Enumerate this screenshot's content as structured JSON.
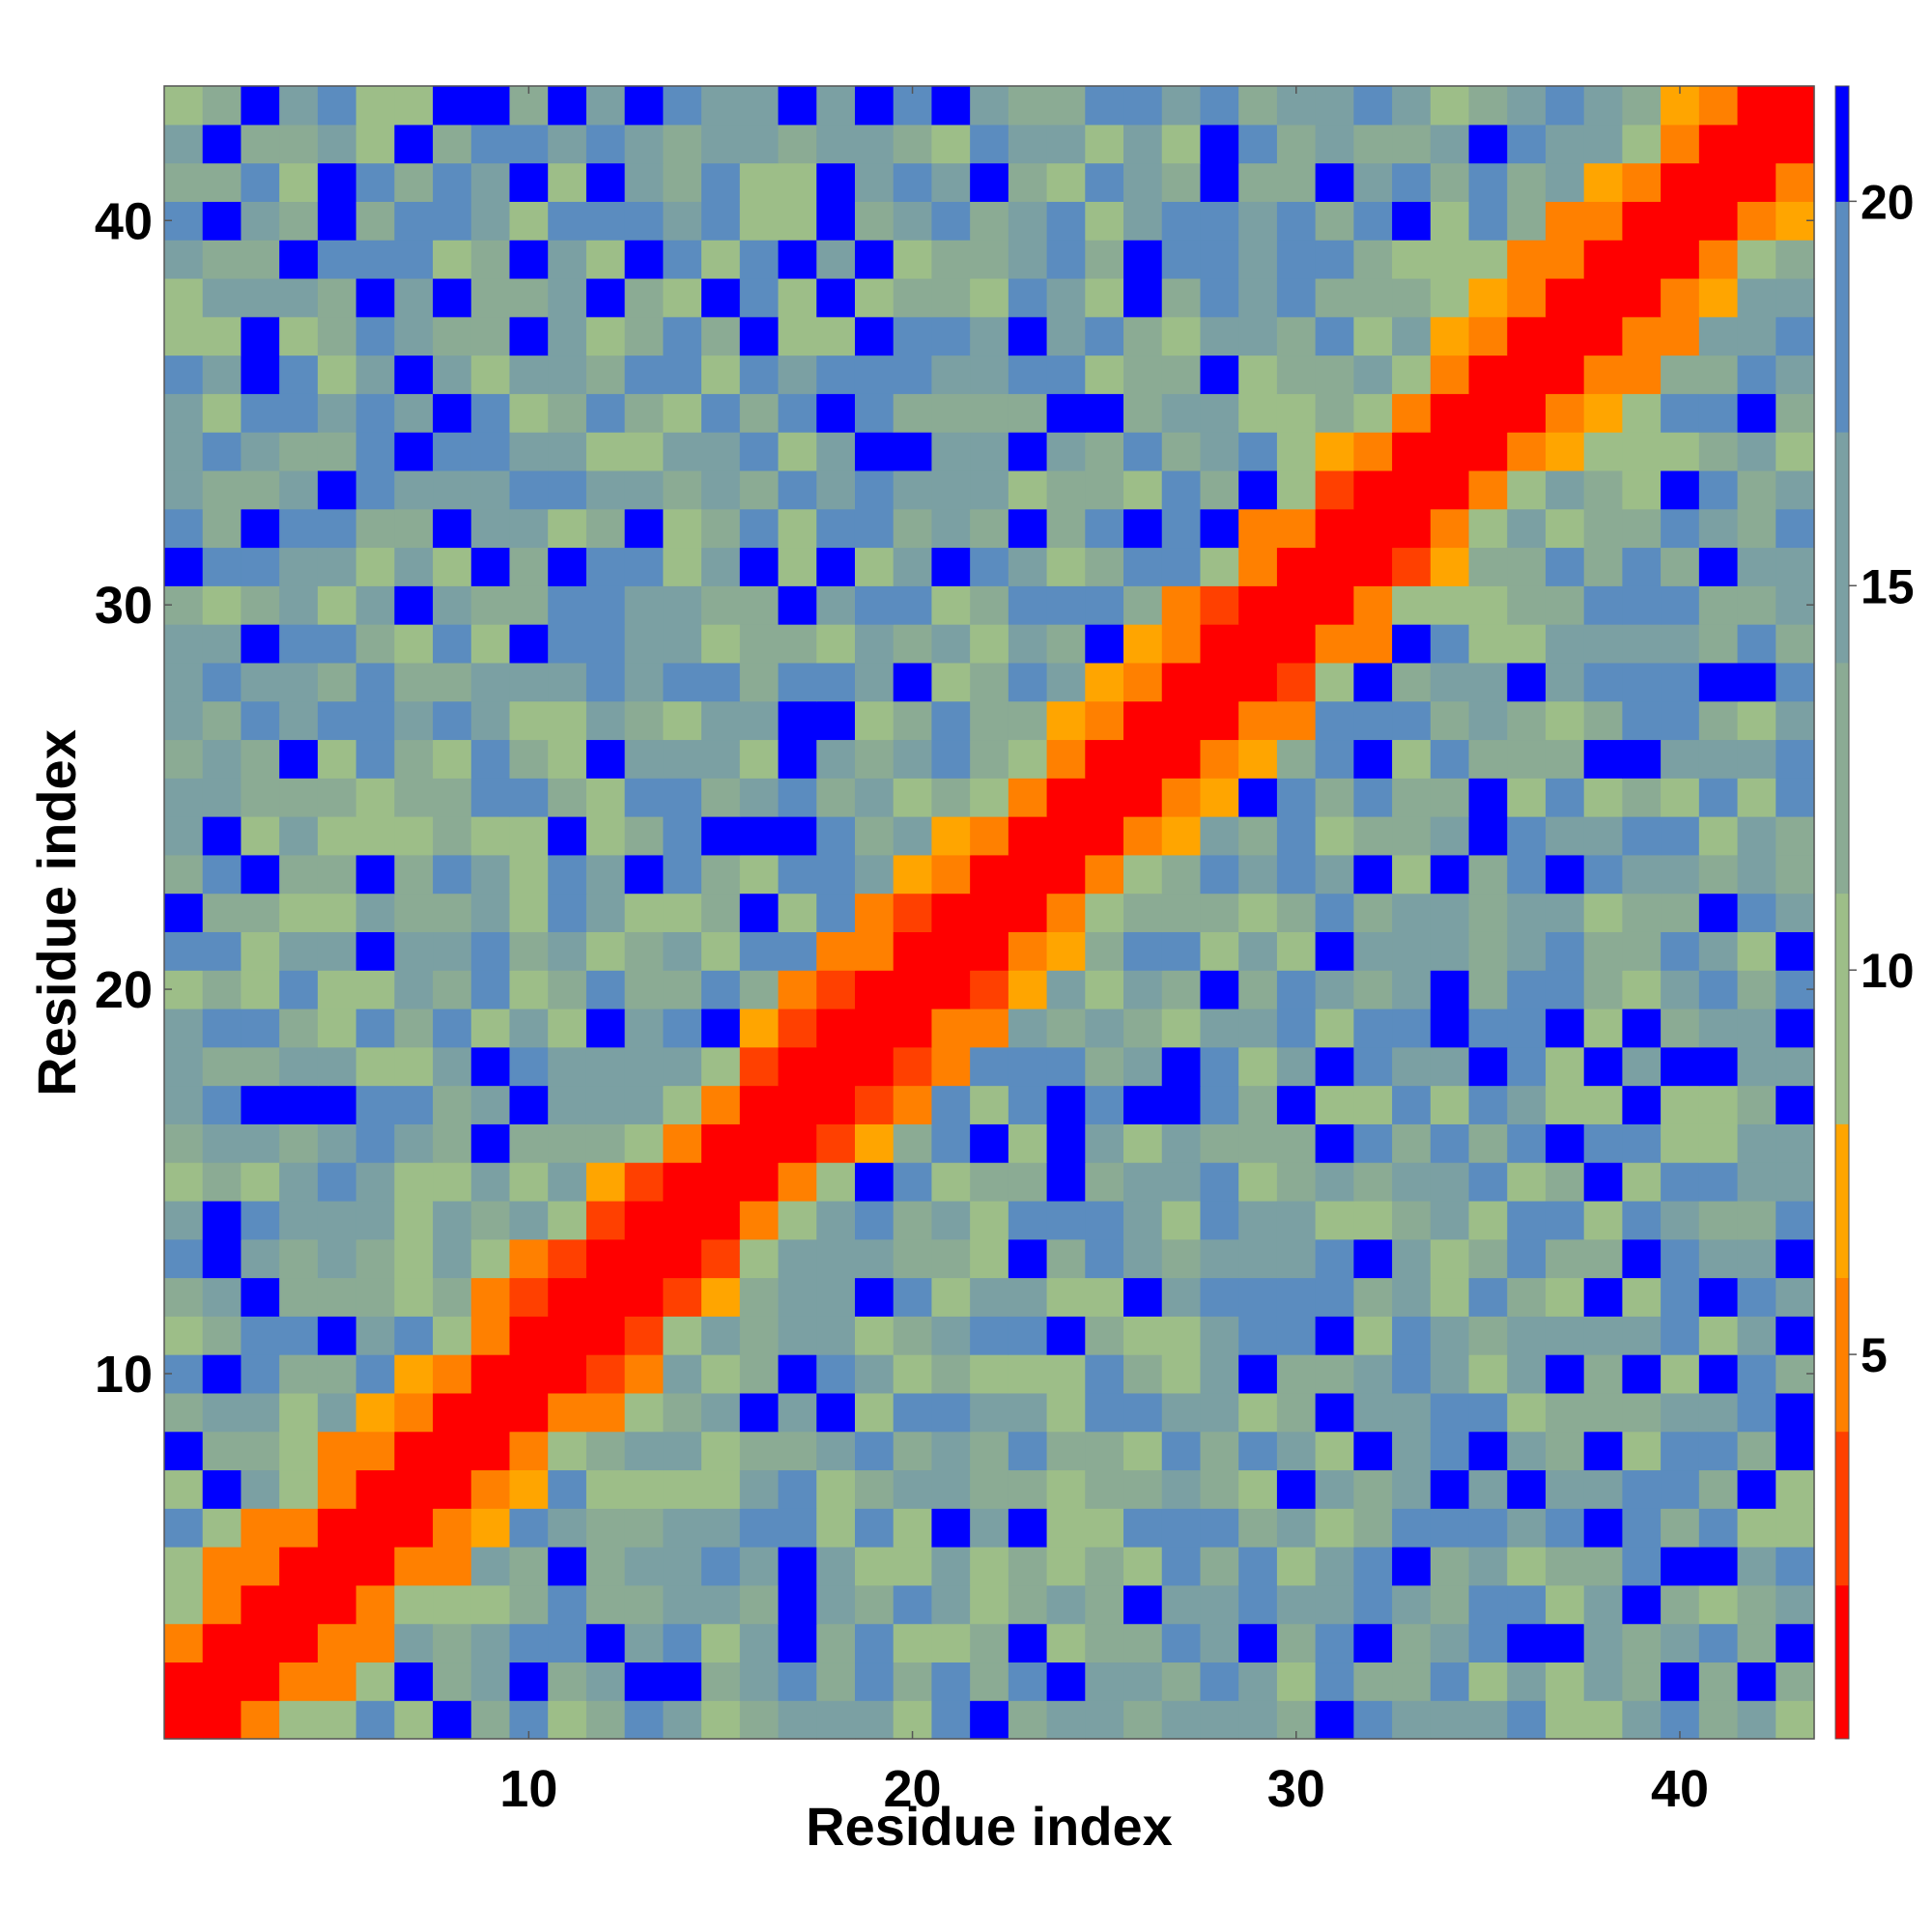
{
  "chart_data": {
    "type": "heatmap",
    "title": "",
    "xlabel": "Residue index",
    "ylabel": "Residue index",
    "n_residues": 43,
    "x_ticks": [
      10,
      20,
      30,
      40
    ],
    "y_ticks": [
      10,
      20,
      30,
      40
    ],
    "colorbar": {
      "ticks": [
        5,
        10,
        15,
        20
      ],
      "range": [
        0,
        21.5
      ],
      "bands": [
        {
          "max": 2,
          "color": "#ff0000"
        },
        {
          "max": 4,
          "color": "#ff4000"
        },
        {
          "max": 6,
          "color": "#ff8000"
        },
        {
          "max": 8,
          "color": "#ffa500"
        },
        {
          "max": 11,
          "color": "#9dbe88"
        },
        {
          "max": 14,
          "color": "#8bab94"
        },
        {
          "max": 17,
          "color": "#7ba0a3"
        },
        {
          "max": 20,
          "color": "#5b8cbf"
        },
        {
          "max": 99,
          "color": "#0000ff"
        }
      ]
    },
    "grid": false,
    "legend": "colorbar-right",
    "note_values": "distance matrix values in colorbar units, row i = residue i, col j = residue j",
    "values": []
  }
}
